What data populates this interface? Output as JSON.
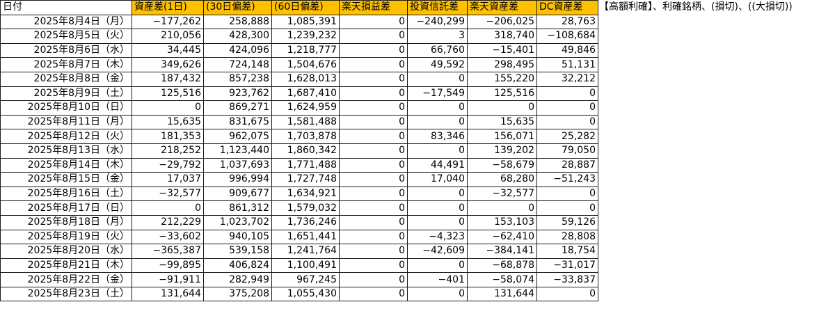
{
  "headers": [
    "日付",
    "資産差(1日)",
    "(30日偏差)",
    "(60日偏差)",
    "楽天損益差",
    "投資信託差",
    "楽天資産差",
    "DC資産差"
  ],
  "note": "【高額利確】、利確銘柄、(損切)、((大損切))",
  "rows": [
    [
      "2025年8月4日（月）",
      "−177,262",
      "258,888",
      "1,085,391",
      "0",
      "−240,299",
      "−206,025",
      "28,763"
    ],
    [
      "2025年8月5日（火）",
      "210,056",
      "428,300",
      "1,239,232",
      "0",
      "3",
      "318,740",
      "−108,684"
    ],
    [
      "2025年8月6日（水）",
      "34,445",
      "424,096",
      "1,218,777",
      "0",
      "66,760",
      "−15,401",
      "49,846"
    ],
    [
      "2025年8月7日（木）",
      "349,626",
      "724,148",
      "1,504,676",
      "0",
      "49,592",
      "298,495",
      "51,131"
    ],
    [
      "2025年8月8日（金）",
      "187,432",
      "857,238",
      "1,628,013",
      "0",
      "0",
      "155,220",
      "32,212"
    ],
    [
      "2025年8月9日（土）",
      "125,516",
      "923,762",
      "1,687,410",
      "0",
      "−17,549",
      "125,516",
      "0"
    ],
    [
      "2025年8月10日（日）",
      "0",
      "869,271",
      "1,624,959",
      "0",
      "0",
      "0",
      "0"
    ],
    [
      "2025年8月11日（月）",
      "15,635",
      "831,675",
      "1,581,488",
      "0",
      "0",
      "15,635",
      "0"
    ],
    [
      "2025年8月12日（火）",
      "181,353",
      "962,075",
      "1,703,878",
      "0",
      "83,346",
      "156,071",
      "25,282"
    ],
    [
      "2025年8月13日（水）",
      "218,252",
      "1,123,440",
      "1,860,342",
      "0",
      "0",
      "139,202",
      "79,050"
    ],
    [
      "2025年8月14日（木）",
      "−29,792",
      "1,037,693",
      "1,771,488",
      "0",
      "44,491",
      "−58,679",
      "28,887"
    ],
    [
      "2025年8月15日（金）",
      "17,037",
      "996,994",
      "1,727,748",
      "0",
      "17,040",
      "68,280",
      "−51,243"
    ],
    [
      "2025年8月16日（土）",
      "−32,577",
      "909,677",
      "1,634,921",
      "0",
      "0",
      "−32,577",
      "0"
    ],
    [
      "2025年8月17日（日）",
      "0",
      "861,312",
      "1,579,032",
      "0",
      "0",
      "0",
      "0"
    ],
    [
      "2025年8月18日（月）",
      "212,229",
      "1,023,702",
      "1,736,246",
      "0",
      "0",
      "153,103",
      "59,126"
    ],
    [
      "2025年8月19日（火）",
      "−33,602",
      "940,105",
      "1,651,441",
      "0",
      "−4,323",
      "−62,410",
      "28,808"
    ],
    [
      "2025年8月20日（水）",
      "−365,387",
      "539,158",
      "1,241,764",
      "0",
      "−42,609",
      "−384,141",
      "18,754"
    ],
    [
      "2025年8月21日（木）",
      "−99,895",
      "406,824",
      "1,100,491",
      "0",
      "0",
      "−68,878",
      "−31,017"
    ],
    [
      "2025年8月22日（金）",
      "−91,911",
      "282,949",
      "967,245",
      "0",
      "−401",
      "−58,074",
      "−33,837"
    ],
    [
      "2025年8月23日（土）",
      "131,644",
      "375,208",
      "1,055,430",
      "0",
      "0",
      "131,644",
      "0"
    ]
  ],
  "colors": {
    "header_highlight": "#ffc000",
    "grid": "#1a1a1a"
  }
}
